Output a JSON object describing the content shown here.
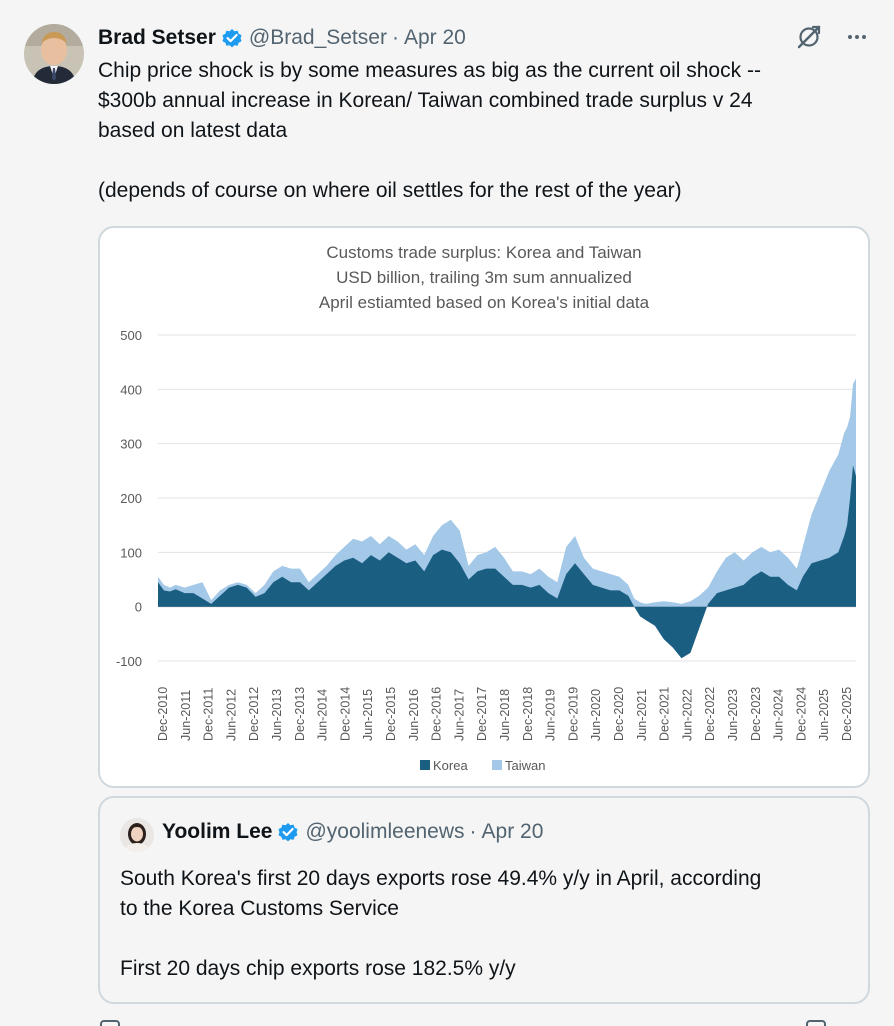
{
  "tweet": {
    "author_name": "Brad Setser",
    "author_handle": "@Brad_Setser",
    "separator": "·",
    "date": "Apr 20",
    "lines": [
      "Chip price shock is by some measures as big as the current oil shock --",
      "$300b annual increase in Korean/ Taiwan combined trade surplus v 24",
      "based on latest data"
    ],
    "line2": "(depends of course on where oil settles for the rest of the year)"
  },
  "icons": {
    "verified": "verified-badge-icon",
    "grok": "grok-icon",
    "more": "more-icon"
  },
  "colors": {
    "korea": "#1a5e82",
    "taiwan": "#a3c8e8",
    "verified": "#1d9bf0"
  },
  "chart_data": {
    "type": "area",
    "title": "Customs trade surplus: Korea and Taiwan",
    "subtitle": "USD billion, trailing 3m sum annualized",
    "subtitle2": "April estiamted based on Korea's initial data",
    "ylim": [
      -100,
      500
    ],
    "yticks": [
      "500",
      "400",
      "300",
      "200",
      "100",
      "0",
      "-100"
    ],
    "x_tick_labels": [
      "Dec-2010",
      "Jun-2011",
      "Dec-2011",
      "Jun-2012",
      "Dec-2012",
      "Jun-2013",
      "Dec-2013",
      "Jun-2014",
      "Dec-2014",
      "Jun-2015",
      "Dec-2015",
      "Jun-2016",
      "Dec-2016",
      "Jun-2017",
      "Dec-2017",
      "Jun-2018",
      "Dec-2018",
      "Jun-2019",
      "Dec-2019",
      "Jun-2020",
      "Dec-2020",
      "Jun-2021",
      "Dec-2021",
      "Jun-2022",
      "Dec-2022",
      "Jun-2023",
      "Dec-2023",
      "Jun-2024",
      "Dec-2024",
      "Jun-2025",
      "Dec-2025"
    ],
    "legend": [
      "Korea",
      "Taiwan"
    ],
    "series": [
      {
        "name": "Korea",
        "points": [
          [
            0,
            45
          ],
          [
            2,
            30
          ],
          [
            4,
            28
          ],
          [
            6,
            32
          ],
          [
            9,
            25
          ],
          [
            12,
            25
          ],
          [
            15,
            15
          ],
          [
            18,
            5
          ],
          [
            21,
            20
          ],
          [
            24,
            35
          ],
          [
            27,
            40
          ],
          [
            30,
            35
          ],
          [
            33,
            18
          ],
          [
            36,
            25
          ],
          [
            39,
            45
          ],
          [
            42,
            55
          ],
          [
            45,
            45
          ],
          [
            48,
            45
          ],
          [
            51,
            30
          ],
          [
            54,
            45
          ],
          [
            57,
            60
          ],
          [
            60,
            75
          ],
          [
            63,
            85
          ],
          [
            66,
            90
          ],
          [
            69,
            80
          ],
          [
            72,
            95
          ],
          [
            75,
            85
          ],
          [
            78,
            100
          ],
          [
            81,
            90
          ],
          [
            84,
            80
          ],
          [
            87,
            85
          ],
          [
            90,
            65
          ],
          [
            93,
            95
          ],
          [
            96,
            105
          ],
          [
            99,
            100
          ],
          [
            102,
            80
          ],
          [
            105,
            50
          ],
          [
            108,
            65
          ],
          [
            111,
            70
          ],
          [
            114,
            70
          ],
          [
            117,
            55
          ],
          [
            120,
            40
          ],
          [
            123,
            40
          ],
          [
            126,
            35
          ],
          [
            129,
            40
          ],
          [
            132,
            25
          ],
          [
            135,
            15
          ],
          [
            138,
            60
          ],
          [
            141,
            80
          ],
          [
            144,
            60
          ],
          [
            147,
            40
          ],
          [
            150,
            35
          ],
          [
            153,
            30
          ],
          [
            156,
            30
          ],
          [
            159,
            20
          ],
          [
            161,
            0
          ],
          [
            163,
            -18
          ],
          [
            165,
            -25
          ],
          [
            168,
            -35
          ],
          [
            171,
            -60
          ],
          [
            174,
            -75
          ],
          [
            177,
            -95
          ],
          [
            180,
            -85
          ],
          [
            183,
            -40
          ],
          [
            186,
            5
          ],
          [
            189,
            25
          ],
          [
            192,
            30
          ],
          [
            195,
            35
          ],
          [
            198,
            40
          ],
          [
            201,
            55
          ],
          [
            204,
            65
          ],
          [
            207,
            55
          ],
          [
            210,
            55
          ],
          [
            213,
            40
          ],
          [
            216,
            30
          ],
          [
            218,
            55
          ],
          [
            221,
            80
          ],
          [
            224,
            85
          ],
          [
            227,
            90
          ],
          [
            230,
            100
          ],
          [
            232,
            130
          ],
          [
            233,
            150
          ],
          [
            234,
            200
          ],
          [
            235,
            260
          ],
          [
            236,
            240
          ]
        ]
      },
      {
        "name": "Taiwan",
        "points": [
          [
            0,
            55
          ],
          [
            2,
            40
          ],
          [
            4,
            35
          ],
          [
            6,
            40
          ],
          [
            9,
            35
          ],
          [
            12,
            40
          ],
          [
            15,
            45
          ],
          [
            18,
            12
          ],
          [
            21,
            30
          ],
          [
            24,
            40
          ],
          [
            27,
            45
          ],
          [
            30,
            40
          ],
          [
            33,
            25
          ],
          [
            36,
            40
          ],
          [
            39,
            65
          ],
          [
            42,
            75
          ],
          [
            45,
            70
          ],
          [
            48,
            70
          ],
          [
            51,
            45
          ],
          [
            54,
            60
          ],
          [
            57,
            75
          ],
          [
            60,
            95
          ],
          [
            63,
            110
          ],
          [
            66,
            125
          ],
          [
            69,
            120
          ],
          [
            72,
            130
          ],
          [
            75,
            115
          ],
          [
            78,
            130
          ],
          [
            81,
            120
          ],
          [
            84,
            105
          ],
          [
            87,
            115
          ],
          [
            90,
            95
          ],
          [
            93,
            130
          ],
          [
            96,
            150
          ],
          [
            99,
            160
          ],
          [
            102,
            140
          ],
          [
            105,
            75
          ],
          [
            108,
            95
          ],
          [
            111,
            100
          ],
          [
            114,
            110
          ],
          [
            117,
            90
          ],
          [
            120,
            65
          ],
          [
            123,
            65
          ],
          [
            126,
            60
          ],
          [
            129,
            70
          ],
          [
            132,
            55
          ],
          [
            135,
            45
          ],
          [
            138,
            110
          ],
          [
            141,
            130
          ],
          [
            144,
            90
          ],
          [
            147,
            70
          ],
          [
            150,
            65
          ],
          [
            153,
            60
          ],
          [
            156,
            55
          ],
          [
            159,
            40
          ],
          [
            161,
            15
          ],
          [
            163,
            8
          ],
          [
            165,
            5
          ],
          [
            168,
            8
          ],
          [
            171,
            10
          ],
          [
            174,
            8
          ],
          [
            177,
            5
          ],
          [
            180,
            10
          ],
          [
            183,
            20
          ],
          [
            186,
            35
          ],
          [
            189,
            65
          ],
          [
            192,
            90
          ],
          [
            195,
            100
          ],
          [
            198,
            85
          ],
          [
            201,
            100
          ],
          [
            204,
            110
          ],
          [
            207,
            100
          ],
          [
            210,
            105
          ],
          [
            213,
            90
          ],
          [
            216,
            70
          ],
          [
            218,
            110
          ],
          [
            221,
            170
          ],
          [
            224,
            210
          ],
          [
            227,
            250
          ],
          [
            230,
            280
          ],
          [
            232,
            320
          ],
          [
            233,
            330
          ],
          [
            234,
            350
          ],
          [
            235,
            410
          ],
          [
            236,
            420
          ]
        ]
      }
    ]
  },
  "quote": {
    "author_name": "Yoolim Lee",
    "author_handle": "@yoolimleenews",
    "separator": "·",
    "date": "Apr 20",
    "lines": [
      "South Korea's first 20 days exports rose 49.4% y/y in April, according",
      "to the Korea Customs Service"
    ],
    "line2": "First 20 days chip exports rose 182.5% y/y"
  }
}
